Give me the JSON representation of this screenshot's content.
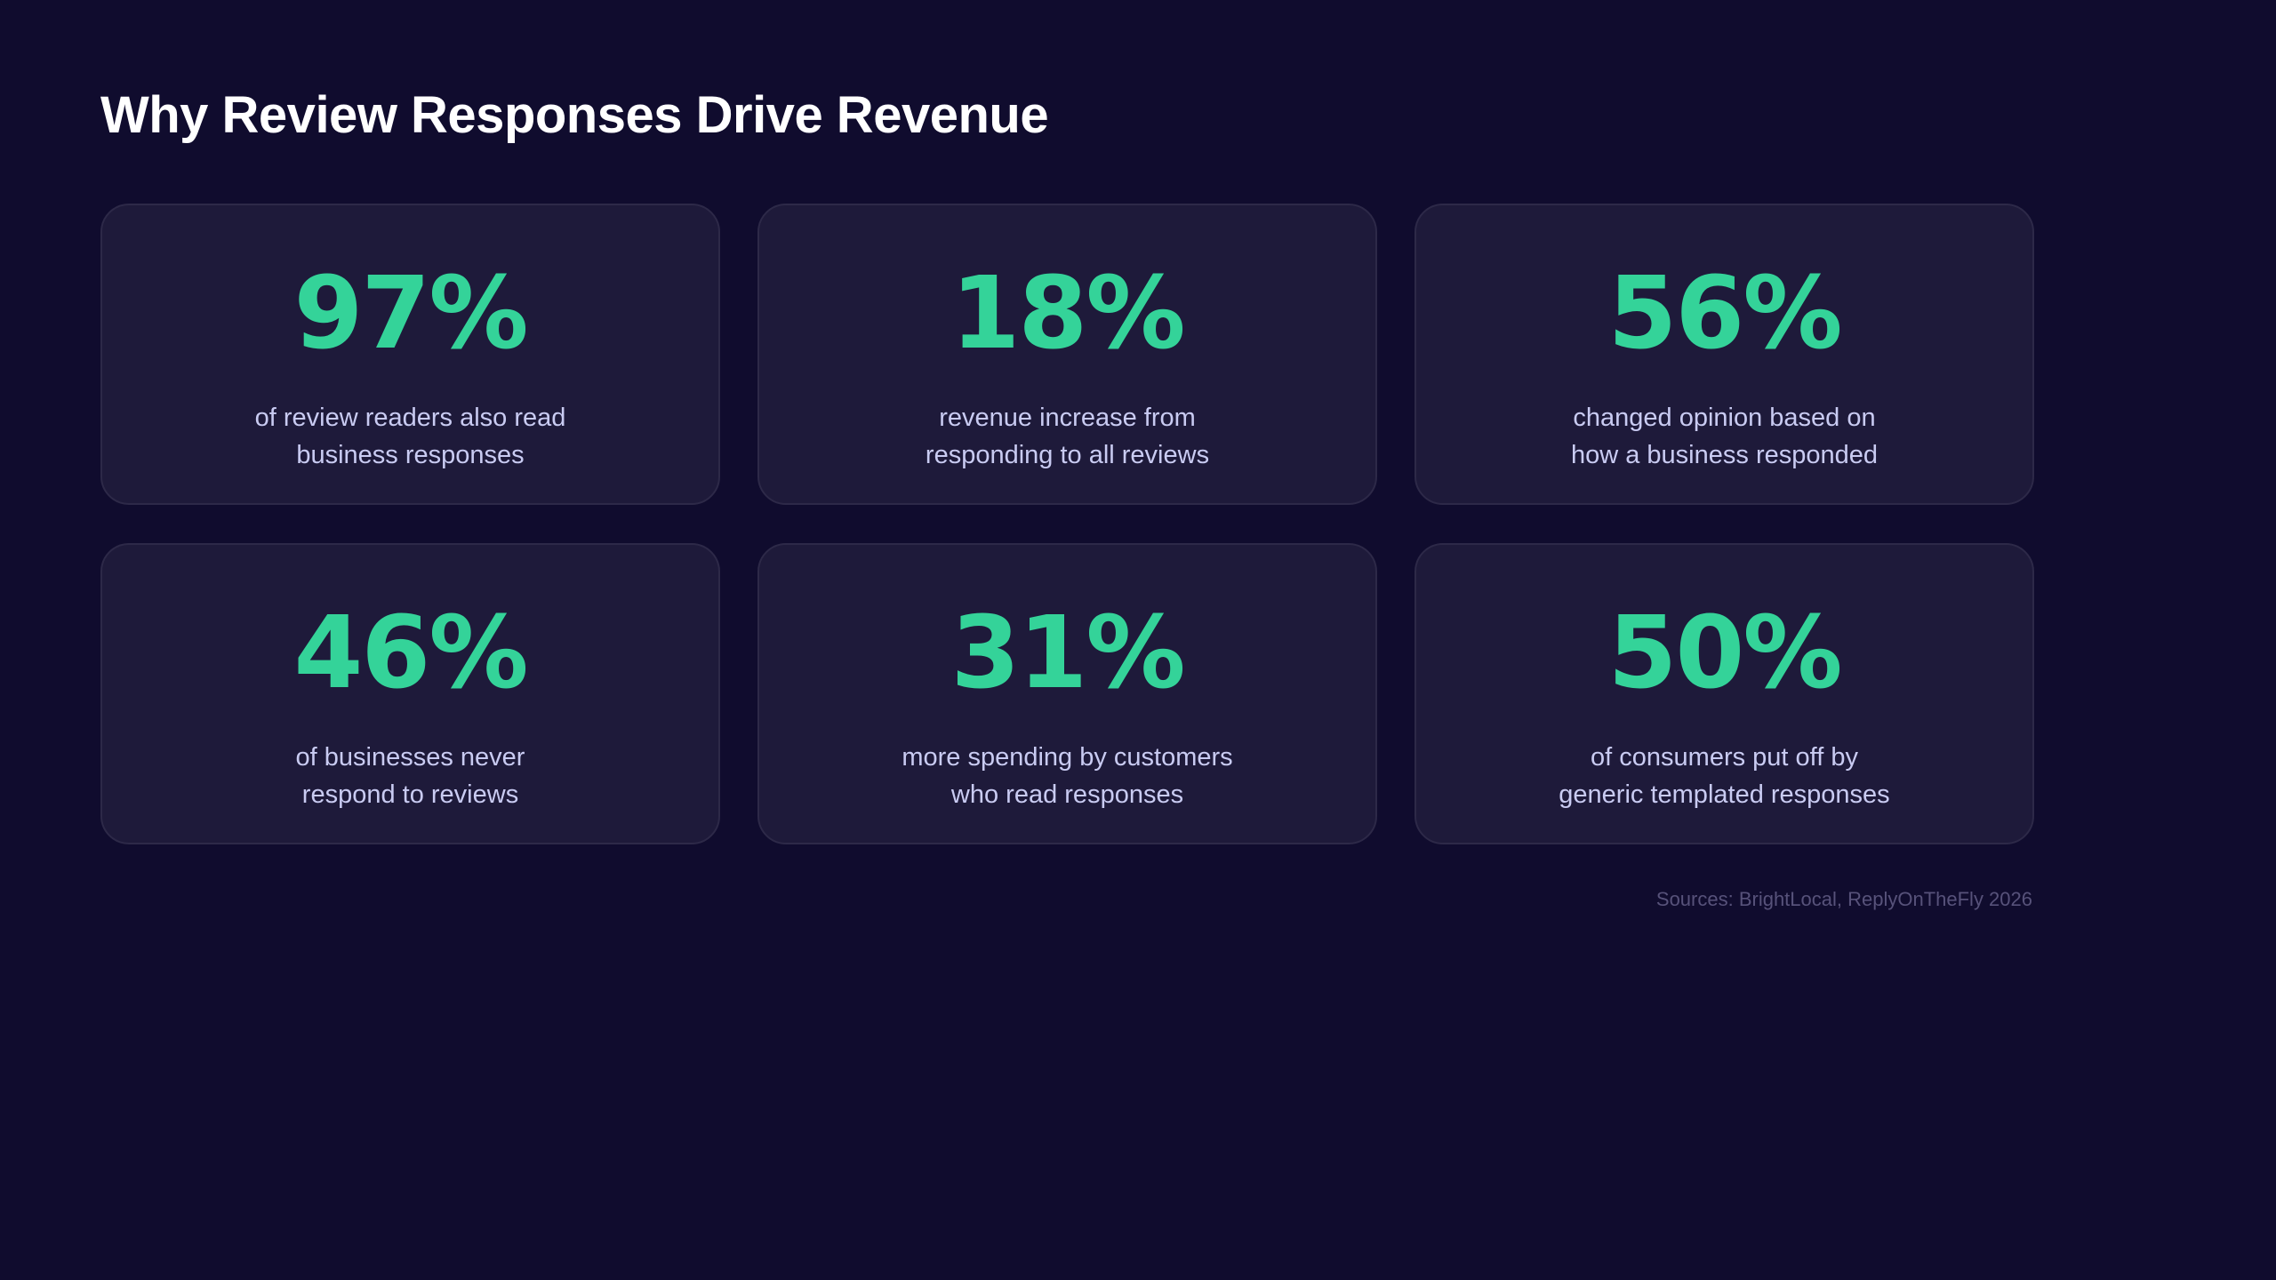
{
  "title": "Why Review Responses Drive Revenue",
  "stats": [
    {
      "value": "97%",
      "line1": "of review readers also read",
      "line2": "business responses"
    },
    {
      "value": "18%",
      "line1": "revenue increase from",
      "line2": "responding to all reviews"
    },
    {
      "value": "56%",
      "line1": "changed opinion based on",
      "line2": "how a business responded"
    },
    {
      "value": "46%",
      "line1": "of businesses never",
      "line2": "respond to reviews"
    },
    {
      "value": "31%",
      "line1": "more spending by customers",
      "line2": "who read responses"
    },
    {
      "value": "50%",
      "line1": "of consumers put off by",
      "line2": "generic templated responses"
    }
  ],
  "sources": "Sources: BrightLocal, ReplyOnTheFly 2026",
  "colors": {
    "background": "#100c2e",
    "card": "#1e1a3a",
    "accent": "#34d399",
    "text": "#c9cbf2"
  }
}
